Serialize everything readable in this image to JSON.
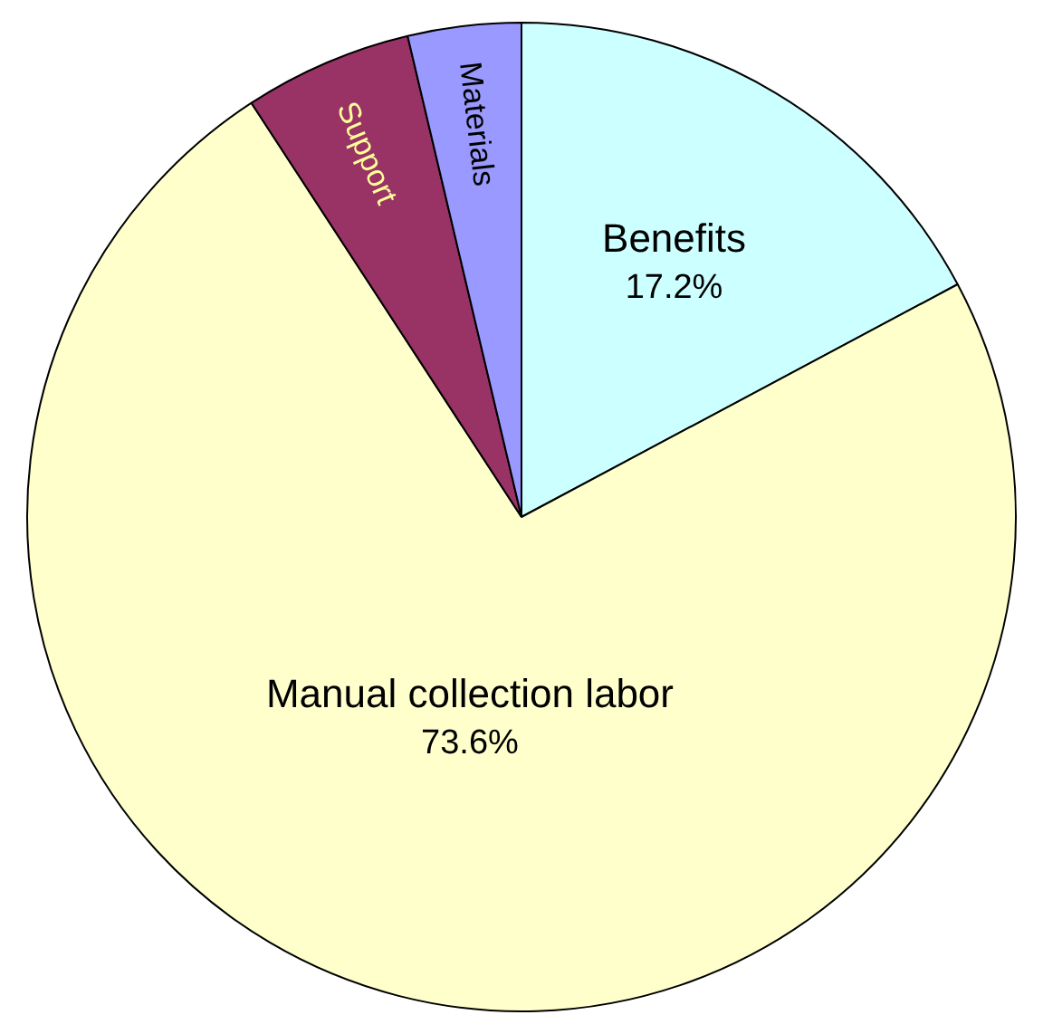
{
  "chart_data": {
    "type": "pie",
    "categories": [
      "Benefits",
      "Manual collection labor",
      "Support",
      "Materials"
    ],
    "values": [
      17.2,
      73.6,
      5.5,
      3.7
    ],
    "colors": [
      "#ccffff",
      "#ffffcc",
      "#993366",
      "#9999ff"
    ],
    "value_labels": [
      "17.2%",
      "73.6%",
      null,
      null
    ],
    "legend": false
  }
}
